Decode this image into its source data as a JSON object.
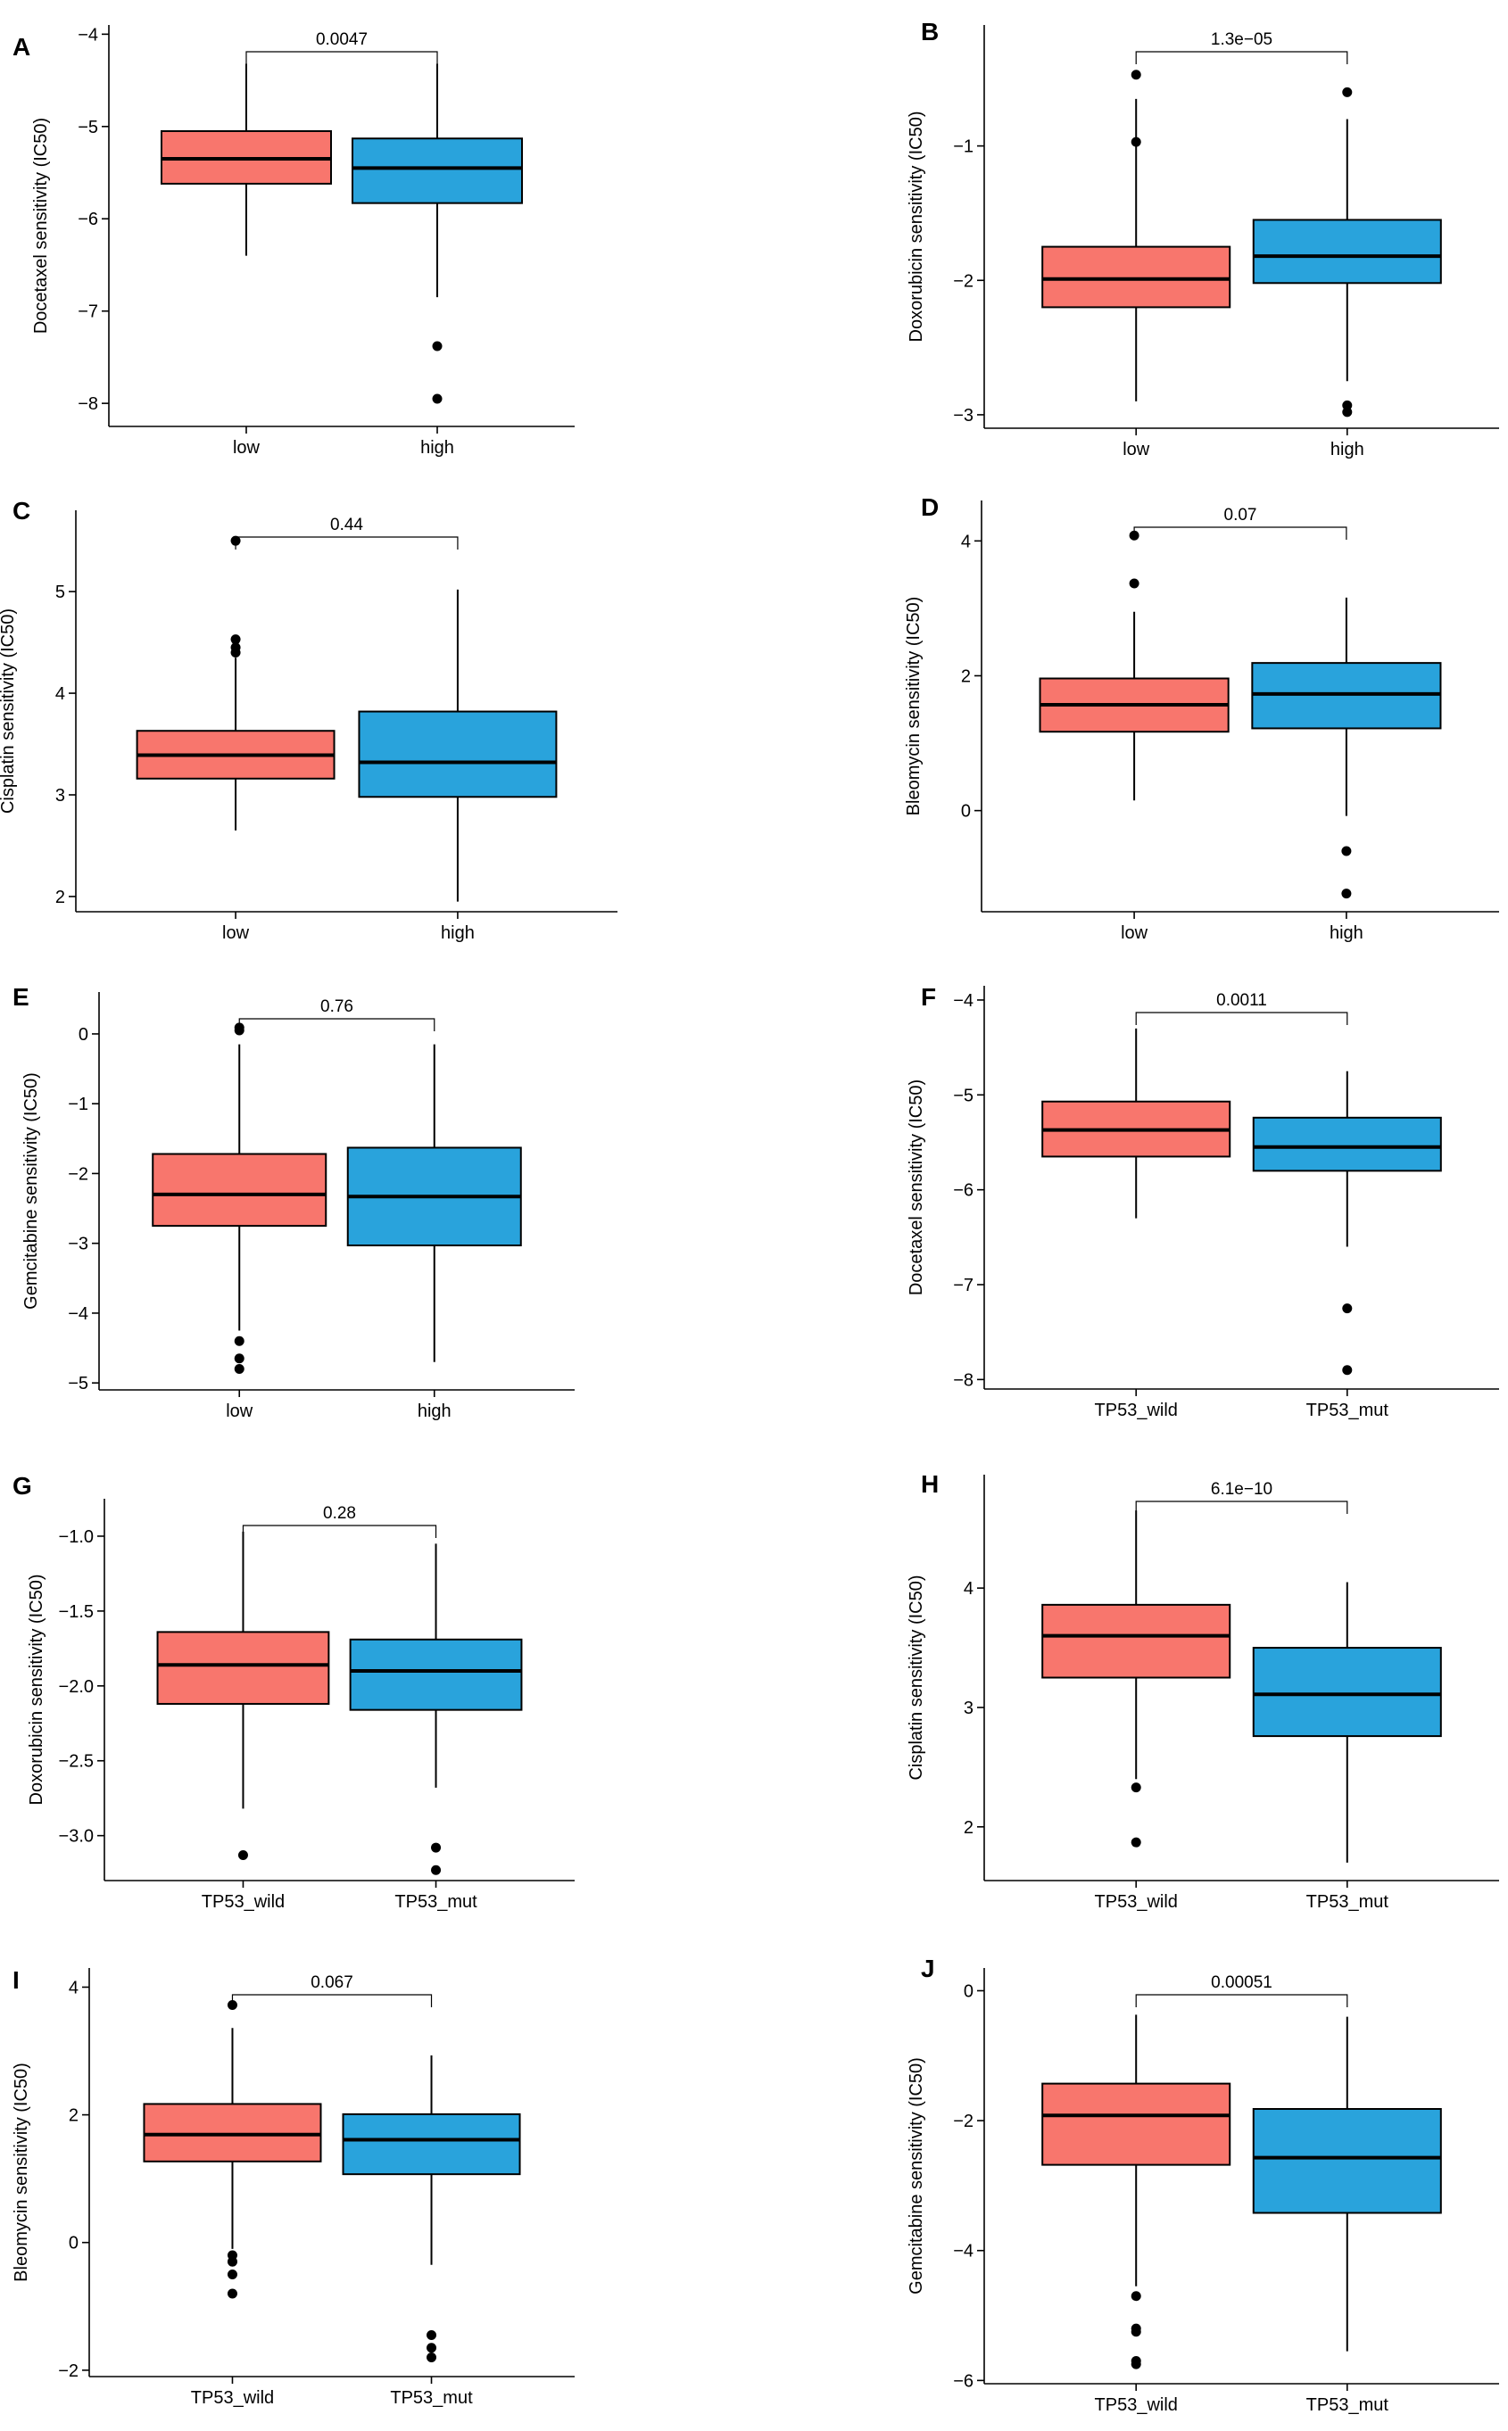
{
  "colors": {
    "low": "#F8766D",
    "high": "#29A3DC",
    "outline": "#000000"
  },
  "chart_data": [
    {
      "panel": "A",
      "type": "box",
      "ylabel": "Docetaxel sensitivity (IC50)",
      "categories": [
        "low",
        "high"
      ],
      "yticks": [
        -4,
        -5,
        -6,
        -7,
        -8
      ],
      "ylim": [
        -8.25,
        -3.9
      ],
      "pvalue": "0.0047",
      "boxes": [
        {
          "min": -6.4,
          "q1": -5.62,
          "median": -5.35,
          "q3": -5.05,
          "max": -4.32,
          "outliers": []
        },
        {
          "min": -6.85,
          "q1": -5.83,
          "median": -5.45,
          "q3": -5.13,
          "max": -4.32,
          "outliers": [
            -7.38,
            -7.95
          ]
        }
      ]
    },
    {
      "panel": "B",
      "type": "box",
      "ylabel": "Doxorubicin sensitivity (IC50)",
      "categories": [
        "low",
        "high"
      ],
      "yticks": [
        -1,
        -2,
        -3
      ],
      "ylim": [
        -3.1,
        -0.1
      ],
      "pvalue": "1.3e−05",
      "boxes": [
        {
          "min": -2.9,
          "q1": -2.2,
          "median": -1.99,
          "q3": -1.75,
          "max": -0.65,
          "outliers": [
            -0.97,
            -0.47
          ]
        },
        {
          "min": -2.75,
          "q1": -2.02,
          "median": -1.82,
          "q3": -1.55,
          "max": -0.8,
          "outliers": [
            -0.6,
            -2.93,
            -2.98
          ]
        }
      ]
    },
    {
      "panel": "C",
      "type": "box",
      "ylabel": "Cisplatin sensitivity (IC50)",
      "categories": [
        "low",
        "high"
      ],
      "yticks": [
        2,
        3,
        4,
        5
      ],
      "ylim": [
        1.85,
        5.8
      ],
      "pvalue": "0.44",
      "boxes": [
        {
          "min": 2.65,
          "q1": 3.16,
          "median": 3.39,
          "q3": 3.63,
          "max": 4.35,
          "outliers": [
            4.4,
            4.45,
            4.53,
            5.5
          ]
        },
        {
          "min": 1.95,
          "q1": 2.98,
          "median": 3.32,
          "q3": 3.82,
          "max": 5.02,
          "outliers": []
        }
      ]
    },
    {
      "panel": "D",
      "type": "box",
      "ylabel": "Bleomycin sensitivity (IC50)",
      "categories": [
        "low",
        "high"
      ],
      "yticks": [
        0,
        2,
        4
      ],
      "ylim": [
        -1.5,
        4.6
      ],
      "pvalue": "0.07",
      "boxes": [
        {
          "min": 0.15,
          "q1": 1.17,
          "median": 1.57,
          "q3": 1.96,
          "max": 2.95,
          "outliers": [
            3.37,
            4.08
          ]
        },
        {
          "min": -0.08,
          "q1": 1.22,
          "median": 1.73,
          "q3": 2.19,
          "max": 3.16,
          "outliers": [
            -0.6,
            -1.23
          ]
        }
      ]
    },
    {
      "panel": "E",
      "type": "box",
      "ylabel": "Gemcitabine sensitivity (IC50)",
      "categories": [
        "low",
        "high"
      ],
      "yticks": [
        0,
        -1,
        -2,
        -3,
        -4,
        -5
      ],
      "ylim": [
        -5.1,
        0.6
      ],
      "pvalue": "0.76",
      "boxes": [
        {
          "min": -4.25,
          "q1": -2.75,
          "median": -2.3,
          "q3": -1.72,
          "max": -0.15,
          "outliers": [
            0.05,
            0.09,
            -4.4,
            -4.65,
            -4.8
          ]
        },
        {
          "min": -4.7,
          "q1": -3.03,
          "median": -2.33,
          "q3": -1.63,
          "max": -0.15,
          "outliers": []
        }
      ]
    },
    {
      "panel": "F",
      "type": "box",
      "ylabel": "Docetaxel sensitivity (IC50)",
      "categories": [
        "TP53_wild",
        "TP53_mut"
      ],
      "yticks": [
        -4,
        -5,
        -6,
        -7,
        -8
      ],
      "ylim": [
        -8.1,
        -3.85
      ],
      "pvalue": "0.0011",
      "boxes": [
        {
          "min": -6.3,
          "q1": -5.65,
          "median": -5.37,
          "q3": -5.07,
          "max": -4.3,
          "outliers": []
        },
        {
          "min": -6.6,
          "q1": -5.8,
          "median": -5.55,
          "q3": -5.24,
          "max": -4.75,
          "outliers": [
            -7.25,
            -7.9
          ]
        }
      ]
    },
    {
      "panel": "G",
      "type": "box",
      "ylabel": "Doxorubicin sensitivity (IC50)",
      "categories": [
        "TP53_wild",
        "TP53_mut"
      ],
      "yticks": [
        -1.0,
        -1.5,
        -2.0,
        -2.5,
        -3.0
      ],
      "ylim": [
        -3.3,
        -0.75
      ],
      "pvalue": "0.28",
      "boxes": [
        {
          "min": -2.82,
          "q1": -2.12,
          "median": -1.86,
          "q3": -1.64,
          "max": -0.97,
          "outliers": [
            -3.13
          ]
        },
        {
          "min": -2.68,
          "q1": -2.16,
          "median": -1.9,
          "q3": -1.69,
          "max": -1.05,
          "outliers": [
            -3.08,
            -3.23
          ]
        }
      ]
    },
    {
      "panel": "H",
      "type": "box",
      "ylabel": "Cisplatin sensitivity (IC50)",
      "categories": [
        "TP53_wild",
        "TP53_mut"
      ],
      "yticks": [
        2,
        3,
        4
      ],
      "ylim": [
        1.55,
        4.95
      ],
      "pvalue": "6.1e−10",
      "boxes": [
        {
          "min": 2.4,
          "q1": 3.25,
          "median": 3.6,
          "q3": 3.86,
          "max": 4.65,
          "outliers": [
            2.33,
            1.87
          ]
        },
        {
          "min": 1.7,
          "q1": 2.76,
          "median": 3.11,
          "q3": 3.5,
          "max": 4.05,
          "outliers": []
        }
      ]
    },
    {
      "panel": "I",
      "type": "box",
      "ylabel": "Bleomycin sensitivity (IC50)",
      "categories": [
        "TP53_wild",
        "TP53_mut"
      ],
      "yticks": [
        -2,
        0,
        2,
        4
      ],
      "ylim": [
        -2.1,
        4.3
      ],
      "pvalue": "0.067",
      "boxes": [
        {
          "min": -0.1,
          "q1": 1.27,
          "median": 1.69,
          "q3": 2.17,
          "max": 3.36,
          "outliers": [
            3.72,
            -0.2,
            -0.3,
            -0.5,
            -0.8
          ]
        },
        {
          "min": -0.35,
          "q1": 1.07,
          "median": 1.61,
          "q3": 2.01,
          "max": 2.93,
          "outliers": [
            -1.45,
            -1.65,
            -1.8
          ]
        }
      ]
    },
    {
      "panel": "J",
      "type": "box",
      "ylabel": "Gemcitabine sensitivity (IC50)",
      "categories": [
        "TP53_wild",
        "TP53_mut"
      ],
      "yticks": [
        0,
        -2,
        -4,
        -6
      ],
      "ylim": [
        -6.05,
        0.35
      ],
      "pvalue": "0.00051",
      "boxes": [
        {
          "min": -4.55,
          "q1": -2.68,
          "median": -1.92,
          "q3": -1.43,
          "max": -0.37,
          "outliers": [
            -4.7,
            -5.2,
            -5.25,
            -5.7,
            -5.75
          ]
        },
        {
          "min": -5.55,
          "q1": -3.42,
          "median": -2.57,
          "q3": -1.82,
          "max": -0.4,
          "outliers": []
        }
      ]
    }
  ]
}
